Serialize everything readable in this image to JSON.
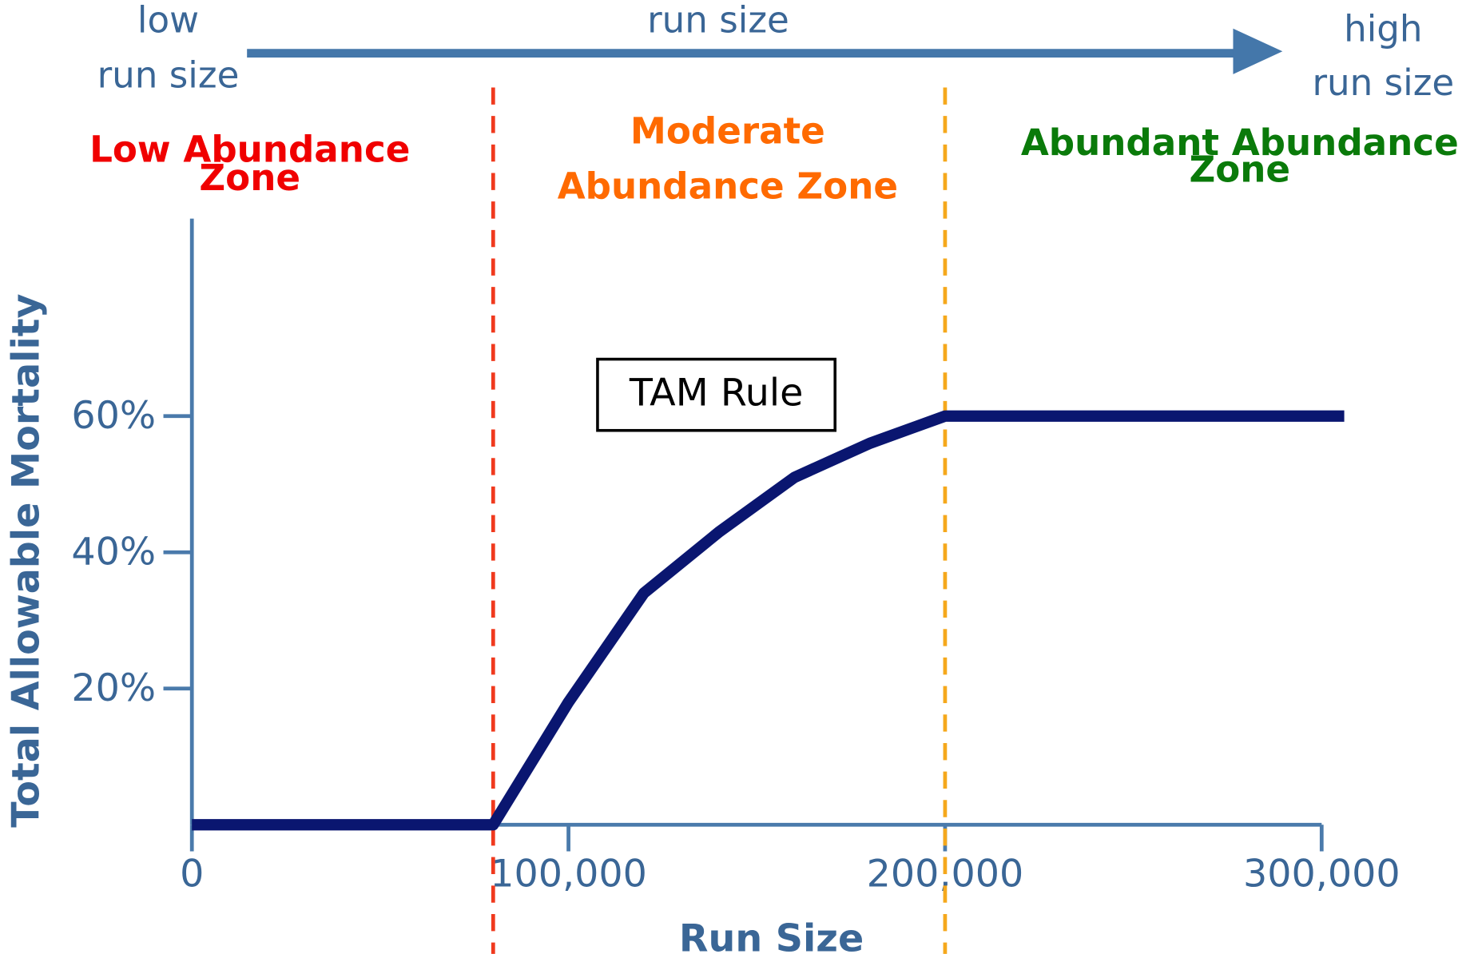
{
  "chart_data": {
    "type": "line",
    "x_label": "Run Size",
    "y_label": "Total Allowable Mortality",
    "x": [
      0,
      80000,
      90000,
      100000,
      120000,
      140000,
      160000,
      180000,
      200000,
      306000
    ],
    "series": [
      {
        "name": "TAM Rule",
        "color": "#0a1670",
        "values": [
          0,
          0,
          9,
          18,
          34,
          43,
          51,
          56,
          60,
          60
        ]
      }
    ],
    "xlim": [
      0,
      306000
    ],
    "ylim": [
      0,
      89
    ],
    "xticks": [
      0,
      {
        "value": 100000,
        "label": "100,000"
      },
      {
        "value": 200000,
        "label": "200,000"
      },
      {
        "value": 300000,
        "label": "300,000"
      }
    ],
    "yticks": [
      {
        "value": 20,
        "label": "20%"
      },
      {
        "value": 40,
        "label": "40%"
      },
      {
        "value": 60,
        "label": "60%"
      }
    ],
    "thresholds": [
      {
        "value": 80000,
        "color": "#f03a1e"
      },
      {
        "value": 200000,
        "color": "#f5a81c"
      }
    ],
    "zones": [
      {
        "lines": [
          "Low Abundance",
          "Zone"
        ],
        "color": "#f00000"
      },
      {
        "lines": [
          "Moderate",
          "Abundance Zone"
        ],
        "color": "#ff6a00"
      },
      {
        "lines": [
          "Abundant Abundance",
          "Zone"
        ],
        "color": "#0a7a0a"
      }
    ],
    "arrow_labels": [
      {
        "lines": [
          "low",
          "run size"
        ]
      },
      {
        "lines": [
          "run size"
        ]
      },
      {
        "lines": [
          "high",
          "run size"
        ]
      }
    ],
    "annotation": "TAM Rule"
  }
}
